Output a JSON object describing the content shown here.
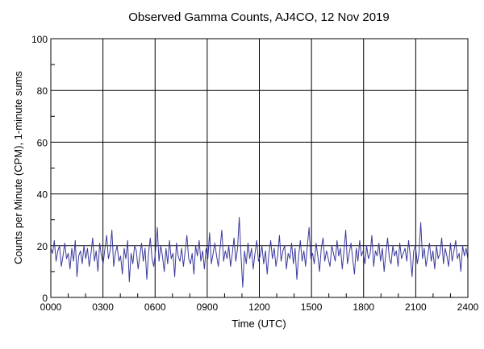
{
  "chart_data": {
    "type": "line",
    "title": "Observed Gamma Counts, AJ4CO, 12 Nov 2019",
    "xlabel": "Time (UTC)",
    "ylabel": "Counts per Minute (CPM), 1-minute sums",
    "xlim": [
      0,
      24
    ],
    "ylim": [
      0,
      100
    ],
    "x_unit": "hours UTC",
    "x_ticks": [
      0,
      3,
      6,
      9,
      12,
      15,
      18,
      21,
      24
    ],
    "x_tick_labels": [
      "0000",
      "0300",
      "0600",
      "0900",
      "1200",
      "1500",
      "1800",
      "2100",
      "2400"
    ],
    "y_ticks": [
      0,
      20,
      40,
      60,
      80,
      100
    ],
    "y_tick_labels": [
      "0",
      "20",
      "40",
      "60",
      "80",
      "100"
    ],
    "grid": true,
    "line_color": "#3a3a9c",
    "series": [
      {
        "values": [
          19,
          17,
          22,
          14,
          18,
          20,
          12,
          16,
          21,
          15,
          17,
          11,
          19,
          14,
          22,
          8,
          16,
          18,
          13,
          20,
          15,
          19,
          12,
          17,
          23,
          14,
          18,
          10,
          21,
          16,
          13,
          19,
          24,
          15,
          18,
          26,
          12,
          17,
          20,
          14,
          16,
          9,
          19,
          15,
          22,
          6,
          17,
          13,
          20,
          18,
          11,
          16,
          21,
          14,
          19,
          7,
          17,
          23,
          15,
          12,
          18,
          27,
          14,
          20,
          16,
          10,
          19,
          13,
          22,
          15,
          17,
          8,
          21,
          16,
          14,
          19,
          12,
          18,
          24,
          15,
          13,
          17,
          9,
          20,
          16,
          22,
          14,
          18,
          11,
          19,
          15,
          25,
          13,
          17,
          21,
          16,
          12,
          19,
          26,
          14,
          18,
          15,
          20,
          12,
          17,
          23,
          14,
          19,
          31,
          16,
          4,
          18,
          13,
          21,
          15,
          19,
          11,
          17,
          22,
          14,
          16,
          20,
          13,
          18,
          9,
          17,
          22,
          15,
          19,
          12,
          16,
          24,
          14,
          18,
          20,
          11,
          17,
          15,
          21,
          13,
          19,
          7,
          16,
          22,
          14,
          18,
          12,
          20,
          27,
          15,
          17,
          13,
          21,
          16,
          10,
          19,
          23,
          14,
          18,
          15,
          12,
          20,
          17,
          14,
          22,
          16,
          19,
          11,
          18,
          26,
          13,
          17,
          21,
          15,
          9,
          19,
          14,
          22,
          16,
          18,
          13,
          20,
          15,
          17,
          24,
          12,
          18,
          16,
          21,
          14,
          19,
          10,
          17,
          23,
          15,
          13,
          20,
          16,
          18,
          12,
          21,
          15,
          17,
          19,
          14,
          22,
          16,
          8,
          18,
          20,
          13,
          17,
          29,
          15,
          19,
          12,
          16,
          21,
          14,
          18,
          11,
          20,
          15,
          17,
          23,
          13,
          19,
          16,
          12,
          21,
          14,
          18,
          22,
          15,
          17,
          10,
          20,
          16,
          19,
          15
        ]
      }
    ]
  }
}
